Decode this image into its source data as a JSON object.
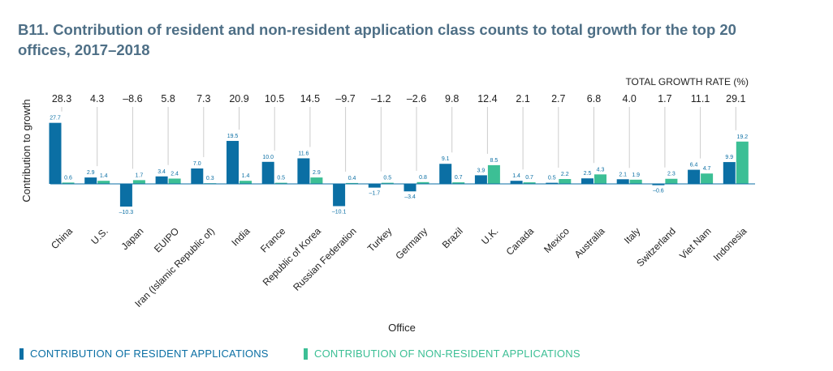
{
  "title": "B11. Contribution of resident and non-resident application class counts to total growth for the top 20 offices, 2017–2018",
  "colors": {
    "resident": "#0b6fa4",
    "nonresident": "#3cbf95",
    "title": "#4e6f86",
    "text": "#222222",
    "zero": "#0b6fa4",
    "guide": "#cccccc"
  },
  "chart_data": {
    "type": "bar",
    "title": "B11. Contribution of resident and non-resident application class counts to total growth for the top 20 offices, 2017–2018",
    "xlabel": "Office",
    "ylabel": "Contribution to growth",
    "total_label": "TOTAL GROWTH RATE (%)",
    "categories": [
      "China",
      "U.S.",
      "Japan",
      "EUIPO",
      "Iran (Islamic Republic of)",
      "India",
      "France",
      "Republic of Korea",
      "Russian Federation",
      "Turkey",
      "Germany",
      "Brazil",
      "U.K.",
      "Canada",
      "Mexico",
      "Australia",
      "Italy",
      "Switzerland",
      "Viet Nam",
      "Indonesia"
    ],
    "totals": [
      "28.3",
      "4.3",
      "–8.6",
      "5.8",
      "7.3",
      "20.9",
      "10.5",
      "14.5",
      "–9.7",
      "–1.2",
      "–2.6",
      "9.8",
      "12.4",
      "2.1",
      "2.7",
      "6.8",
      "4.0",
      "1.7",
      "11.1",
      "29.1"
    ],
    "series": [
      {
        "name": "CONTRIBUTION OF RESIDENT APPLICATIONS",
        "values": [
          27.7,
          2.9,
          -10.3,
          3.4,
          7.0,
          19.5,
          10.0,
          11.6,
          -10.1,
          -1.7,
          -3.4,
          9.1,
          3.9,
          1.4,
          0.5,
          2.5,
          2.1,
          -0.6,
          6.4,
          9.9
        ],
        "labels": [
          "27.7",
          "2.9",
          "–10.3",
          "3.4",
          "7.0",
          "19.5",
          "10.0",
          "11.6",
          "–10.1",
          "–1.7",
          "–3.4",
          "9.1",
          "3.9",
          "1.4",
          "0.5",
          "2.5",
          "2.1",
          "–0.6",
          "6.4",
          "9.9"
        ]
      },
      {
        "name": "CONTRIBUTION OF NON-RESIDENT APPLICATIONS",
        "values": [
          0.6,
          1.4,
          1.7,
          2.4,
          0.3,
          1.4,
          0.5,
          2.9,
          0.4,
          0.5,
          0.8,
          0.7,
          8.5,
          0.7,
          2.2,
          4.3,
          1.9,
          2.3,
          4.7,
          19.2
        ],
        "labels": [
          "0.6",
          "1.4",
          "1.7",
          "2.4",
          "0.3",
          "1.4",
          "0.5",
          "2.9",
          "0.4",
          "0.5",
          "0.8",
          "0.7",
          "8.5",
          "0.7",
          "2.2",
          "4.3",
          "1.9",
          "2.3",
          "4.7",
          "19.2"
        ]
      }
    ],
    "legend_position": "bottom-left",
    "grid": false
  }
}
